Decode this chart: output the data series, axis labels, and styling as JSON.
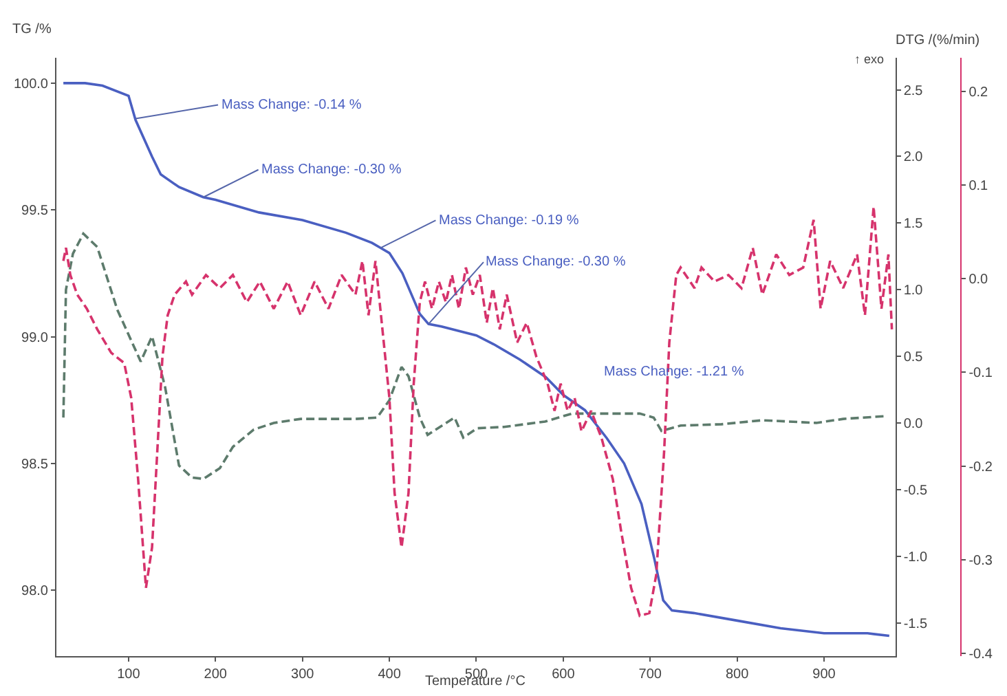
{
  "chart_data": {
    "type": "line",
    "xlabel": "Temperature /°C",
    "ylabel": "TG /%",
    "y3label": "DTG /(%/min)",
    "xlim": [
      17,
      982
    ],
    "xticks": [
      100,
      200,
      300,
      400,
      500,
      600,
      700,
      800,
      900
    ],
    "ylim": [
      97.74,
      100.1
    ],
    "yticks": [
      {
        "value": 98,
        "label": "98.0"
      },
      {
        "value": 98.5,
        "label": "98.5"
      },
      {
        "value": 99,
        "label": "99.0"
      },
      {
        "value": 99.5,
        "label": "99.5"
      },
      {
        "value": 100,
        "label": "100.0"
      }
    ],
    "y2lim": [
      -1.75,
      2.74
    ],
    "y2ticks": [
      {
        "value": -1.5,
        "label": "-1.5"
      },
      {
        "value": -1,
        "label": "-1.0"
      },
      {
        "value": -0.5,
        "label": "-0.5"
      },
      {
        "value": 0,
        "label": "0.0"
      },
      {
        "value": 0.5,
        "label": "0.5"
      },
      {
        "value": 1,
        "label": "1.0"
      },
      {
        "value": 1.5,
        "label": "1.5"
      },
      {
        "value": 2,
        "label": "2.0"
      },
      {
        "value": 2.5,
        "label": "2.5"
      }
    ],
    "y3lim": [
      -0.403,
      0.236
    ],
    "y3ticks": [
      {
        "value": -0.4,
        "label": "-0.4"
      },
      {
        "value": -0.3,
        "label": "-0.3"
      },
      {
        "value": -0.2,
        "label": "-0.2"
      },
      {
        "value": -0.1,
        "label": "-0.1"
      },
      {
        "value": 0,
        "label": "0.0"
      },
      {
        "value": 0.1,
        "label": "0.1"
      },
      {
        "value": 0.2,
        "label": "0.2"
      }
    ],
    "legend": false,
    "marker": "none",
    "series": [
      {
        "color": "#4a5fc1",
        "line_style": "solid",
        "x": [
          25,
          50,
          70,
          100,
          108,
          127,
          137,
          158,
          186,
          200,
          250,
          300,
          350,
          380,
          390,
          400,
          415,
          425,
          435,
          445,
          460,
          500,
          520,
          550,
          580,
          600,
          625,
          650,
          670,
          690,
          705,
          715,
          725,
          750,
          800,
          850,
          900,
          950,
          975
        ],
        "values": [
          100.0,
          100.0,
          99.99,
          99.95,
          99.855,
          99.71,
          99.64,
          99.59,
          99.55,
          99.54,
          99.49,
          99.46,
          99.41,
          99.37,
          99.35,
          99.33,
          99.25,
          99.17,
          99.09,
          99.05,
          99.04,
          99.005,
          98.97,
          98.91,
          98.84,
          98.77,
          98.71,
          98.6,
          98.5,
          98.34,
          98.12,
          97.96,
          97.92,
          97.91,
          97.88,
          97.85,
          97.83,
          97.83,
          97.82
        ]
      },
      {
        "axis": "y2",
        "color": "#5d7b6c",
        "line_style": "dashed",
        "x": [
          25,
          28,
          36,
          48,
          64,
          87,
          114,
          127,
          142,
          158,
          173,
          186,
          205,
          220,
          244,
          267,
          298,
          361,
          386,
          400,
          414,
          422,
          435,
          444,
          475,
          485,
          501,
          532,
          579,
          610,
          657,
          688,
          704,
          713,
          735,
          782,
          829,
          891,
          922,
          969
        ],
        "values": [
          0.04,
          1.0,
          1.27,
          1.42,
          1.32,
          0.85,
          0.46,
          0.65,
          0.27,
          -0.32,
          -0.41,
          -0.42,
          -0.34,
          -0.18,
          -0.05,
          0.0,
          0.03,
          0.03,
          0.04,
          0.17,
          0.42,
          0.35,
          0.04,
          -0.09,
          0.04,
          -0.11,
          -0.04,
          -0.03,
          0.01,
          0.07,
          0.07,
          0.07,
          0.04,
          -0.06,
          -0.02,
          -0.01,
          0.02,
          0.0,
          0.03,
          0.05
        ]
      },
      {
        "axis": "y3",
        "color": "#d6336c",
        "line_style": "dashed",
        "x": [
          25,
          28,
          33,
          41,
          52,
          64,
          80,
          95,
          103,
          111,
          120,
          127,
          133,
          139,
          145,
          153,
          166,
          173,
          189,
          205,
          220,
          236,
          251,
          267,
          283,
          298,
          314,
          330,
          345,
          361,
          369,
          376,
          384,
          392,
          400,
          406,
          414,
          422,
          428,
          435,
          441,
          449,
          457,
          465,
          472,
          480,
          488,
          496,
          504,
          512,
          519,
          527,
          535,
          547,
          558,
          569,
          582,
          590,
          597,
          605,
          613,
          621,
          632,
          644,
          657,
          667,
          678,
          688,
          699,
          707,
          716,
          722,
          730,
          735,
          751,
          759,
          774,
          790,
          805,
          818,
          829,
          845,
          860,
          876,
          888,
          896,
          907,
          922,
          938,
          947,
          957,
          966,
          974,
          978
        ],
        "values": [
          0.019,
          0.033,
          0.004,
          -0.017,
          -0.032,
          -0.054,
          -0.079,
          -0.09,
          -0.127,
          -0.214,
          -0.33,
          -0.287,
          -0.185,
          -0.083,
          -0.039,
          -0.017,
          -0.003,
          -0.017,
          0.004,
          -0.01,
          0.004,
          -0.025,
          -0.003,
          -0.032,
          -0.003,
          -0.039,
          -0.003,
          -0.032,
          0.004,
          -0.017,
          0.019,
          -0.039,
          0.019,
          -0.054,
          -0.127,
          -0.229,
          -0.287,
          -0.229,
          -0.112,
          -0.025,
          -0.003,
          -0.032,
          -0.003,
          -0.025,
          0.004,
          -0.032,
          0.012,
          -0.017,
          0.004,
          -0.047,
          -0.01,
          -0.054,
          -0.017,
          -0.068,
          -0.047,
          -0.083,
          -0.112,
          -0.141,
          -0.112,
          -0.141,
          -0.127,
          -0.163,
          -0.141,
          -0.17,
          -0.214,
          -0.272,
          -0.33,
          -0.36,
          -0.357,
          -0.316,
          -0.185,
          -0.068,
          0.004,
          0.012,
          -0.01,
          0.012,
          -0.003,
          0.004,
          -0.01,
          0.033,
          -0.017,
          0.026,
          0.004,
          0.012,
          0.063,
          -0.032,
          0.019,
          -0.01,
          0.026,
          -0.039,
          0.077,
          -0.032,
          0.026,
          -0.054
        ]
      }
    ],
    "annotations": [
      {
        "text": "Mass Change: -0.14 %",
        "x": 108,
        "y": 99.86
      },
      {
        "text": "Mass Change: -0.30 %",
        "x": 186,
        "y": 99.55
      },
      {
        "text": "Mass Change: -0.19 %",
        "x": 390,
        "y": 99.35
      },
      {
        "text": "Mass Change: -0.30 %",
        "x": 445,
        "y": 99.05
      },
      "Mass Change: -1.21 %",
      "↑ exo"
    ]
  }
}
